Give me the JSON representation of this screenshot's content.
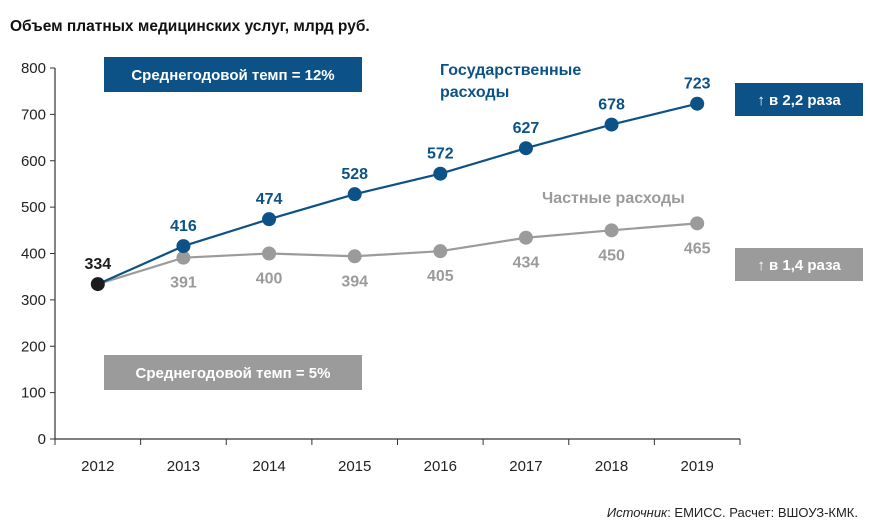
{
  "chart_data": {
    "type": "line",
    "title": "Объем платных медицинских услуг, млрд руб.",
    "categories": [
      "2012",
      "2013",
      "2014",
      "2015",
      "2016",
      "2017",
      "2018",
      "2019"
    ],
    "ylim": [
      0,
      800
    ],
    "yticks": [
      0,
      100,
      200,
      300,
      400,
      500,
      600,
      700,
      800
    ],
    "grid": false,
    "series": [
      {
        "name": "Государственные расходы",
        "name_lines": [
          "Государственные",
          "расходы"
        ],
        "color": "#0d5287",
        "values": [
          334,
          416,
          474,
          528,
          572,
          627,
          678,
          723
        ],
        "labels": [
          "334",
          "416",
          "474",
          "528",
          "572",
          "627",
          "678",
          "723"
        ],
        "label_position": "above",
        "growth": "↑ в 2,2 раза",
        "rate": "Среднегодовой темп = 12%"
      },
      {
        "name": "Частные расходы",
        "color": "#9b9b9b",
        "values": [
          334,
          391,
          400,
          394,
          405,
          434,
          450,
          465
        ],
        "labels": [
          "",
          "391",
          "400",
          "394",
          "405",
          "434",
          "450",
          "465"
        ],
        "label_position": "below",
        "growth": "↑ в 1,4 раза",
        "rate": "Среднегодовой темп = 5%"
      }
    ],
    "start_point": {
      "value": 334,
      "label": "334",
      "color": "#1c1c1c"
    }
  },
  "source": {
    "prefix": "Источник",
    "text": ": ЕМИСС. Расчет: ВШОУЗ-КМК."
  }
}
